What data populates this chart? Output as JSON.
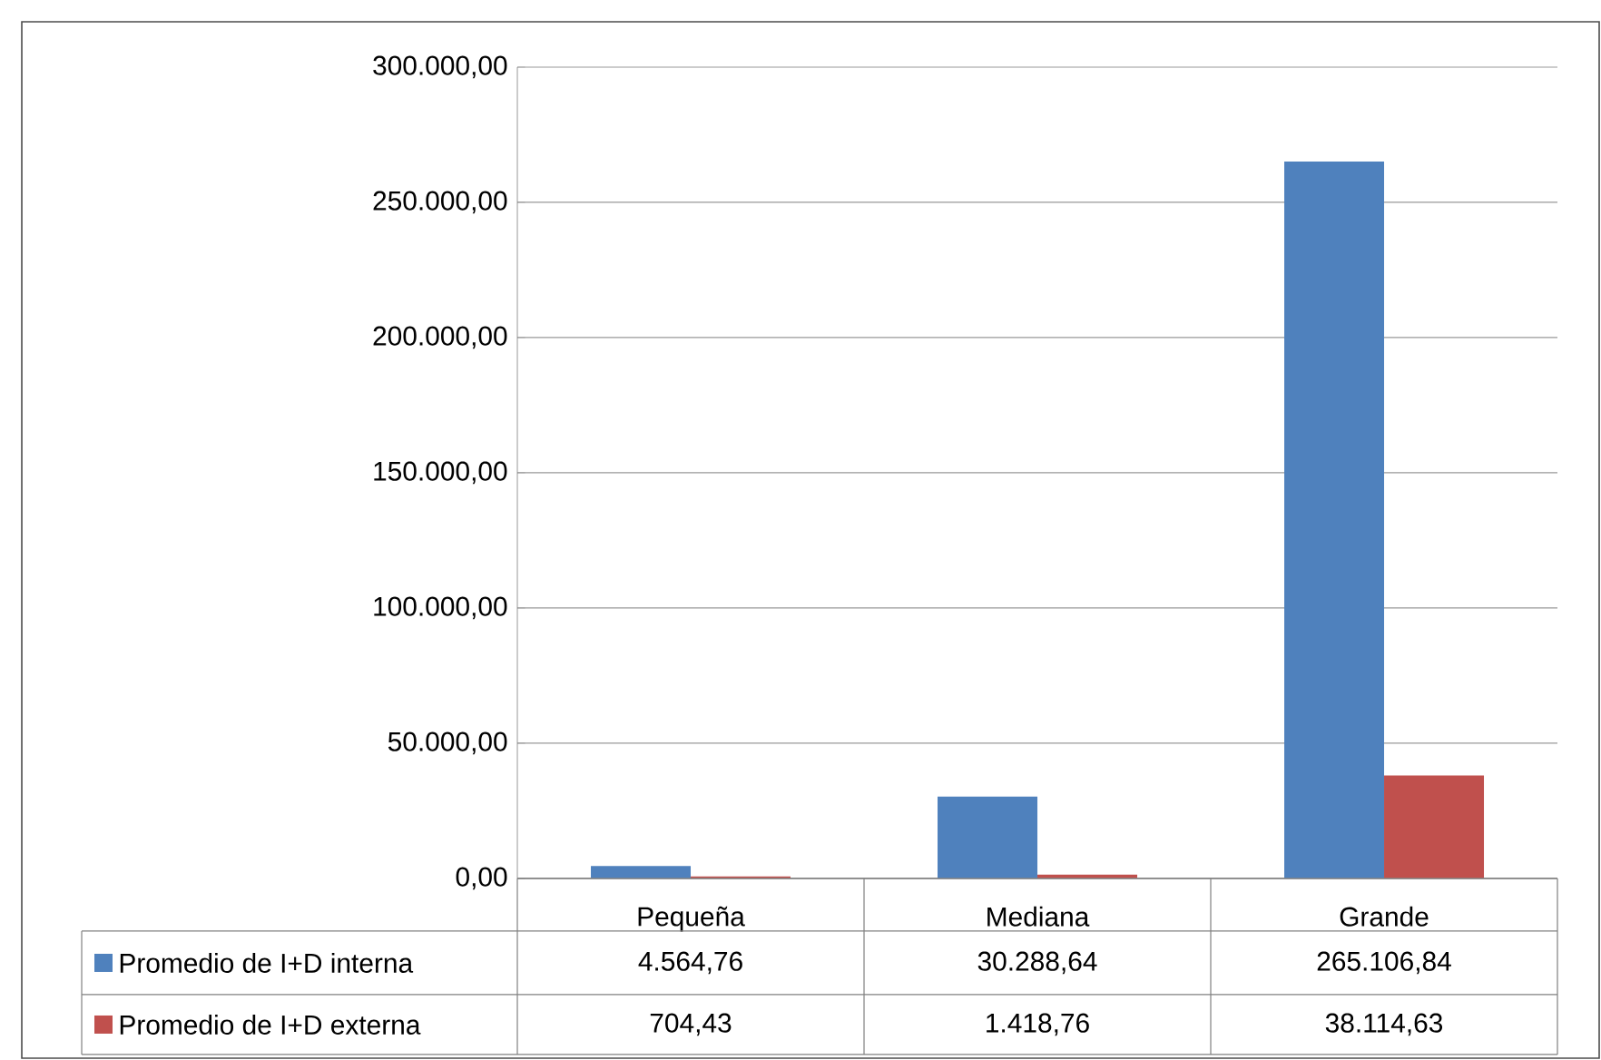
{
  "chart_data": {
    "type": "bar",
    "categories": [
      "Pequeña",
      "Mediana",
      "Grande"
    ],
    "series": [
      {
        "name": "Promedio de I+D interna",
        "color": "#4f81bd",
        "values": [
          4564.76,
          30288.64,
          265106.84
        ],
        "value_labels": [
          "4.564,76",
          "30.288,64",
          "265.106,84"
        ]
      },
      {
        "name": "Promedio de I+D externa",
        "color": "#c0504d",
        "values": [
          704.43,
          1418.76,
          38114.63
        ],
        "value_labels": [
          "704,43",
          "1.418,76",
          "38.114,63"
        ]
      }
    ],
    "ylim": [
      0,
      300000
    ],
    "yticks": [
      {
        "value": 0,
        "label": "0,00"
      },
      {
        "value": 50000,
        "label": "50.000,00"
      },
      {
        "value": 100000,
        "label": "100.000,00"
      },
      {
        "value": 150000,
        "label": "150.000,00"
      },
      {
        "value": 200000,
        "label": "200.000,00"
      },
      {
        "value": 250000,
        "label": "250.000,00"
      },
      {
        "value": 300000,
        "label": "300.000,00"
      }
    ],
    "grid": "y",
    "legend": "bottom"
  }
}
